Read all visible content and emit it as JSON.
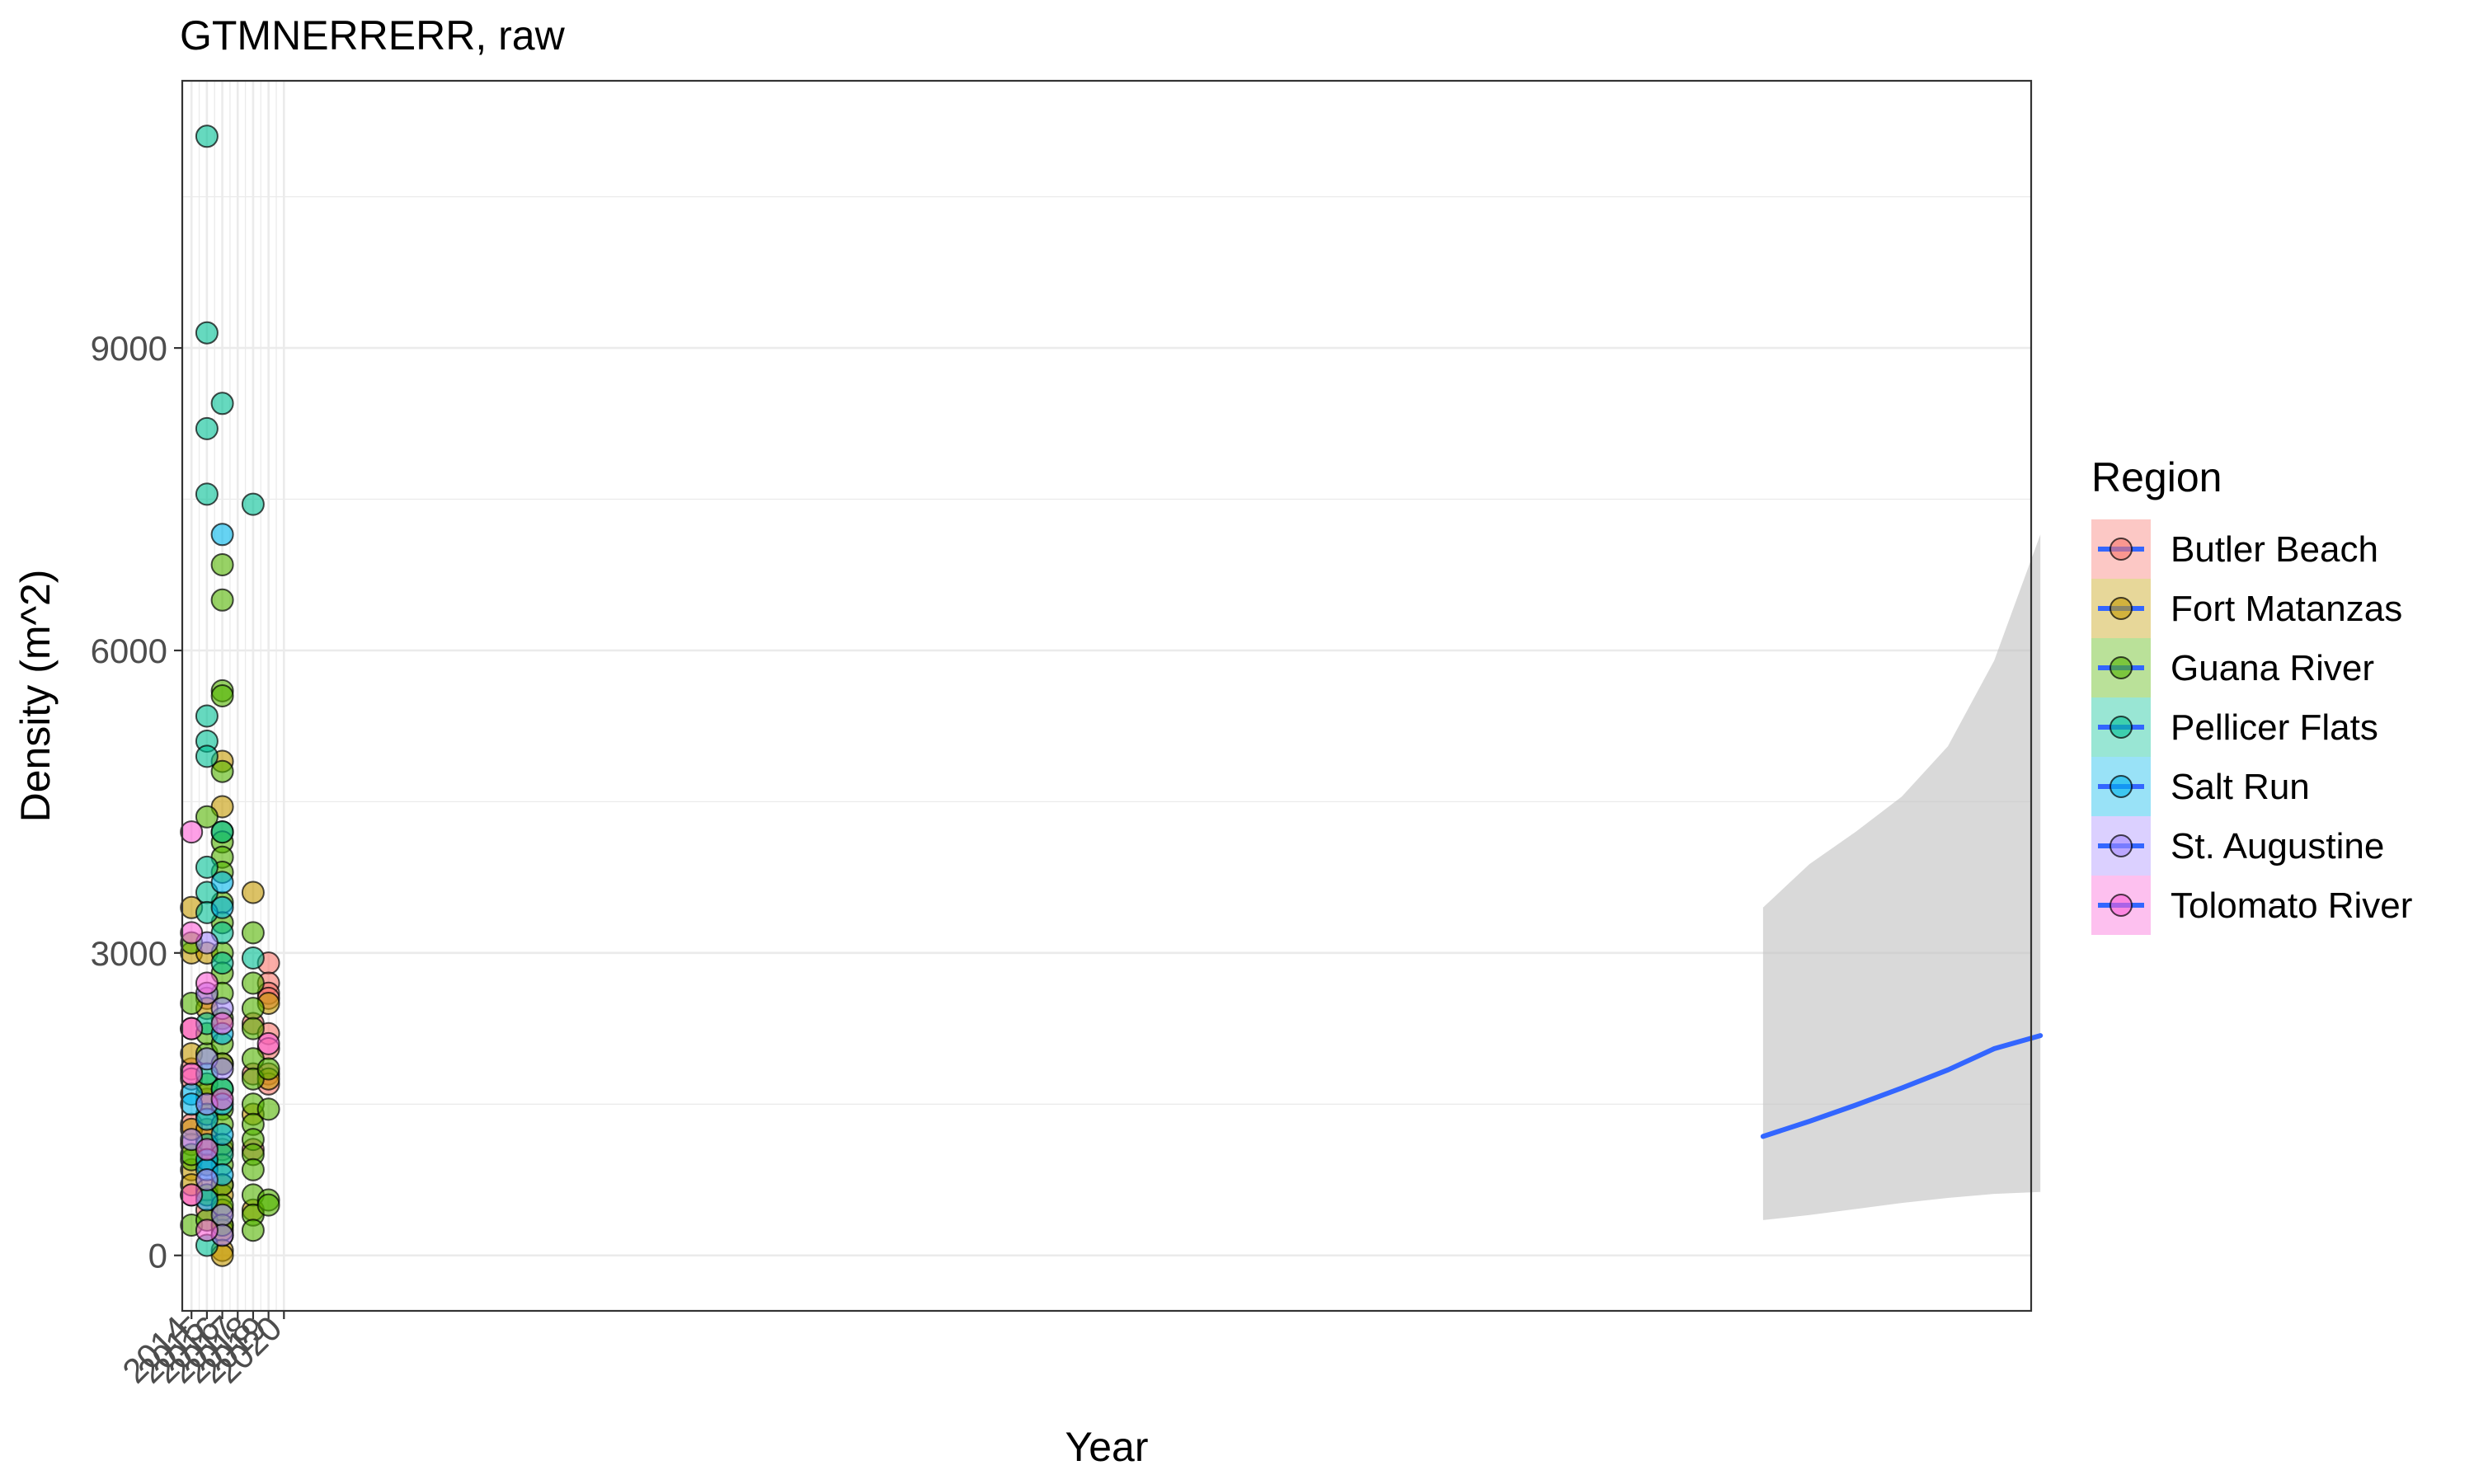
{
  "chart_data": {
    "type": "scatter",
    "title": "GTMNERRERR, raw",
    "xlabel": "Year",
    "ylabel": "Density (m^2)",
    "x_ticks": [
      2014,
      2015,
      2016,
      2017,
      2018,
      2019,
      2020
    ],
    "x_tick_labels": [
      "2014",
      "2015",
      "2016",
      "2017",
      "2018",
      "2019",
      "2020"
    ],
    "y_ticks": [
      0,
      3000,
      6000,
      9000
    ],
    "y_tick_labels": [
      "0",
      "3000",
      "6000",
      "9000"
    ],
    "xlim": [
      2013.4,
      2133.4
    ],
    "ylim": [
      -550,
      11650
    ],
    "grid": true,
    "legend": {
      "title": "Region",
      "placement": "right",
      "entries": [
        "Butler Beach",
        "Fort Matanzas",
        "Guana River",
        "Pellicer Flats",
        "Salt Run",
        "St. Augustine",
        "Tolomato River"
      ]
    },
    "colors": {
      "Butler Beach": "#F8766D",
      "Fort Matanzas": "#C49A00",
      "Guana River": "#53B400",
      "Pellicer Flats": "#00C094",
      "Salt Run": "#00B6EB",
      "St. Augustine": "#A58AFF",
      "Tolomato River": "#FB61D7",
      "trend_line": "#3366FF",
      "ribbon": "#BFBFBF"
    },
    "series": [
      {
        "name": "Butler Beach",
        "points": [
          [
            2014,
            1300
          ],
          [
            2014,
            1850
          ],
          [
            2014,
            2250
          ],
          [
            2014,
            600
          ],
          [
            2014,
            1100
          ],
          [
            2014,
            1750
          ],
          [
            2015,
            450
          ],
          [
            2015,
            1550
          ],
          [
            2015,
            1150
          ],
          [
            2015,
            900
          ],
          [
            2015,
            2550
          ],
          [
            2016,
            300
          ],
          [
            2016,
            200
          ],
          [
            2016,
            1050
          ],
          [
            2016,
            1900
          ],
          [
            2016,
            700
          ],
          [
            2018,
            1800
          ],
          [
            2018,
            2300
          ],
          [
            2018,
            1050
          ],
          [
            2019,
            2900
          ],
          [
            2019,
            2700
          ],
          [
            2019,
            2600
          ],
          [
            2019,
            2550
          ],
          [
            2019,
            2200
          ],
          [
            2019,
            2050
          ],
          [
            2019,
            1800
          ],
          [
            2019,
            1700
          ]
        ]
      },
      {
        "name": "Fort Matanzas",
        "points": [
          [
            2014,
            3450
          ],
          [
            2014,
            3000
          ],
          [
            2014,
            2000
          ],
          [
            2014,
            1250
          ],
          [
            2014,
            850
          ],
          [
            2014,
            700
          ],
          [
            2015,
            1600
          ],
          [
            2015,
            1250
          ],
          [
            2015,
            900
          ],
          [
            2015,
            650
          ],
          [
            2015,
            3000
          ],
          [
            2015,
            2450
          ],
          [
            2016,
            4450
          ],
          [
            2016,
            4900
          ],
          [
            2016,
            600
          ],
          [
            2016,
            450
          ],
          [
            2016,
            250
          ],
          [
            2016,
            50
          ],
          [
            2016,
            0
          ],
          [
            2018,
            3600
          ],
          [
            2018,
            1400
          ],
          [
            2018,
            450
          ],
          [
            2019,
            2500
          ],
          [
            2019,
            1750
          ]
        ]
      },
      {
        "name": "Guana River",
        "points": [
          [
            2014,
            2500
          ],
          [
            2014,
            3100
          ],
          [
            2014,
            950
          ],
          [
            2014,
            300
          ],
          [
            2014,
            1000
          ],
          [
            2015,
            2000
          ],
          [
            2015,
            4350
          ],
          [
            2015,
            2200
          ],
          [
            2015,
            1700
          ],
          [
            2015,
            1400
          ],
          [
            2015,
            600
          ],
          [
            2015,
            350
          ],
          [
            2016,
            6850
          ],
          [
            2016,
            6500
          ],
          [
            2016,
            5600
          ],
          [
            2016,
            5550
          ],
          [
            2016,
            4800
          ],
          [
            2016,
            4200
          ],
          [
            2016,
            4100
          ],
          [
            2016,
            3950
          ],
          [
            2016,
            3800
          ],
          [
            2016,
            3500
          ],
          [
            2016,
            3300
          ],
          [
            2016,
            3000
          ],
          [
            2016,
            2800
          ],
          [
            2016,
            2600
          ],
          [
            2016,
            2350
          ],
          [
            2016,
            2100
          ],
          [
            2016,
            1900
          ],
          [
            2016,
            1650
          ],
          [
            2016,
            1450
          ],
          [
            2016,
            1300
          ],
          [
            2016,
            1100
          ],
          [
            2016,
            900
          ],
          [
            2016,
            700
          ],
          [
            2016,
            500
          ],
          [
            2016,
            300
          ],
          [
            2018,
            3200
          ],
          [
            2018,
            2700
          ],
          [
            2018,
            2450
          ],
          [
            2018,
            2250
          ],
          [
            2018,
            1950
          ],
          [
            2018,
            1750
          ],
          [
            2018,
            1500
          ],
          [
            2018,
            1300
          ],
          [
            2018,
            1150
          ],
          [
            2018,
            1000
          ],
          [
            2018,
            850
          ],
          [
            2018,
            600
          ],
          [
            2018,
            400
          ],
          [
            2018,
            250
          ],
          [
            2019,
            1850
          ],
          [
            2019,
            1450
          ],
          [
            2019,
            550
          ],
          [
            2019,
            500
          ]
        ]
      },
      {
        "name": "Pellicer Flats",
        "points": [
          [
            2015,
            11100
          ],
          [
            2015,
            9150
          ],
          [
            2015,
            8200
          ],
          [
            2015,
            7550
          ],
          [
            2015,
            5350
          ],
          [
            2015,
            5100
          ],
          [
            2015,
            4950
          ],
          [
            2015,
            3850
          ],
          [
            2015,
            3600
          ],
          [
            2015,
            3400
          ],
          [
            2015,
            2300
          ],
          [
            2015,
            1800
          ],
          [
            2015,
            1100
          ],
          [
            2015,
            100
          ],
          [
            2016,
            8450
          ],
          [
            2016,
            4200
          ],
          [
            2016,
            3200
          ],
          [
            2016,
            2900
          ],
          [
            2016,
            1650
          ],
          [
            2016,
            1000
          ],
          [
            2018,
            7450
          ],
          [
            2018,
            2950
          ]
        ]
      },
      {
        "name": "Salt Run",
        "points": [
          [
            2014,
            1600
          ],
          [
            2014,
            1500
          ],
          [
            2015,
            1350
          ],
          [
            2015,
            950
          ],
          [
            2015,
            850
          ],
          [
            2015,
            550
          ],
          [
            2016,
            7150
          ],
          [
            2016,
            3700
          ],
          [
            2016,
            3450
          ],
          [
            2016,
            2200
          ],
          [
            2016,
            1500
          ],
          [
            2016,
            1200
          ],
          [
            2016,
            800
          ]
        ]
      },
      {
        "name": "St. Augustine",
        "points": [
          [
            2014,
            1150
          ],
          [
            2015,
            3100
          ],
          [
            2015,
            2600
          ],
          [
            2015,
            1950
          ],
          [
            2015,
            1500
          ],
          [
            2015,
            750
          ],
          [
            2016,
            2450
          ],
          [
            2016,
            1850
          ],
          [
            2016,
            400
          ],
          [
            2016,
            200
          ]
        ]
      },
      {
        "name": "Tolomato River",
        "points": [
          [
            2014,
            4200
          ],
          [
            2014,
            3200
          ],
          [
            2014,
            2250
          ],
          [
            2014,
            1800
          ],
          [
            2014,
            600
          ],
          [
            2015,
            2700
          ],
          [
            2015,
            1050
          ],
          [
            2015,
            250
          ],
          [
            2016,
            2300
          ],
          [
            2016,
            1550
          ],
          [
            2019,
            2100
          ]
        ]
      }
    ],
    "trend": {
      "x": [
        2116,
        2119,
        2122,
        2125,
        2128,
        2131,
        2134
      ],
      "y": [
        1180,
        1330,
        1490,
        1660,
        1840,
        2050,
        2180
      ],
      "ci_lower": [
        350,
        400,
        460,
        520,
        570,
        610,
        630
      ],
      "ci_upper": [
        3450,
        3880,
        4200,
        4550,
        5050,
        5900,
        7150
      ]
    }
  }
}
